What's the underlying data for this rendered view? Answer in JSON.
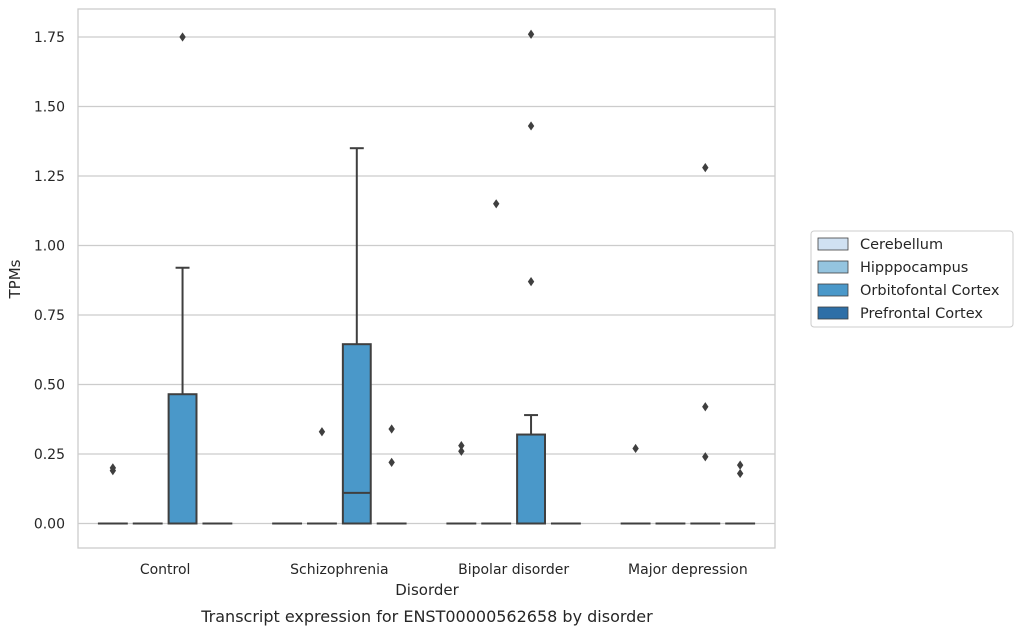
{
  "chart_data": {
    "type": "box",
    "caption": "Transcript expression for ENST00000562658 by disorder",
    "xlabel": "Disorder",
    "ylabel": "TPMs",
    "ylim": [
      -0.085,
      1.85
    ],
    "yticks": [
      0.0,
      0.25,
      0.5,
      0.75,
      1.0,
      1.25,
      1.5,
      1.75
    ],
    "ytick_labels": [
      "0.00",
      "0.25",
      "0.50",
      "0.75",
      "1.00",
      "1.25",
      "1.50",
      "1.75"
    ],
    "grid": "y",
    "categories": [
      "Control",
      "Schizophrenia",
      "Bipolar disorder",
      "Major depression"
    ],
    "legend": {
      "placement": "right"
    },
    "series": [
      {
        "name": "Cerebellum",
        "color": "#d0e1f2",
        "boxes": [
          {
            "q1": 0,
            "median": 0,
            "q3": 0,
            "whisker_low": 0,
            "whisker_high": 0,
            "outliers": [
              0.19,
              0.2
            ]
          },
          {
            "q1": 0,
            "median": 0,
            "q3": 0,
            "whisker_low": 0,
            "whisker_high": 0,
            "outliers": []
          },
          {
            "q1": 0,
            "median": 0,
            "q3": 0,
            "whisker_low": 0,
            "whisker_high": 0,
            "outliers": [
              0.26,
              0.28
            ]
          },
          {
            "q1": 0,
            "median": 0,
            "q3": 0,
            "whisker_low": 0,
            "whisker_high": 0,
            "outliers": [
              0.27
            ]
          }
        ]
      },
      {
        "name": "Hipppocampus",
        "color": "#94c4df",
        "boxes": [
          {
            "q1": 0,
            "median": 0,
            "q3": 0,
            "whisker_low": 0,
            "whisker_high": 0,
            "outliers": []
          },
          {
            "q1": 0,
            "median": 0,
            "q3": 0,
            "whisker_low": 0,
            "whisker_high": 0,
            "outliers": [
              0.33
            ]
          },
          {
            "q1": 0,
            "median": 0,
            "q3": 0,
            "whisker_low": 0,
            "whisker_high": 0,
            "outliers": [
              1.15
            ]
          },
          {
            "q1": 0,
            "median": 0,
            "q3": 0,
            "whisker_low": 0,
            "whisker_high": 0,
            "outliers": []
          }
        ]
      },
      {
        "name": "Orbitofontal Cortex",
        "color": "#4a98c9",
        "boxes": [
          {
            "q1": 0,
            "median": 0,
            "q3": 0.465,
            "whisker_low": 0,
            "whisker_high": 0.92,
            "outliers": [
              1.75
            ]
          },
          {
            "q1": 0,
            "median": 0.11,
            "q3": 0.645,
            "whisker_low": 0,
            "whisker_high": 1.35,
            "outliers": []
          },
          {
            "q1": 0,
            "median": 0,
            "q3": 0.32,
            "whisker_low": 0,
            "whisker_high": 0.39,
            "outliers": [
              0.87,
              1.43,
              1.76
            ]
          },
          {
            "q1": 0,
            "median": 0,
            "q3": 0,
            "whisker_low": 0,
            "whisker_high": 0,
            "outliers": [
              0.24,
              0.42,
              1.28
            ]
          }
        ]
      },
      {
        "name": "Prefrontal Cortex",
        "color": "#2e6fa7",
        "boxes": [
          {
            "q1": 0,
            "median": 0,
            "q3": 0,
            "whisker_low": 0,
            "whisker_high": 0,
            "outliers": []
          },
          {
            "q1": 0,
            "median": 0,
            "q3": 0,
            "whisker_low": 0,
            "whisker_high": 0,
            "outliers": [
              0.22,
              0.34
            ]
          },
          {
            "q1": 0,
            "median": 0,
            "q3": 0,
            "whisker_low": 0,
            "whisker_high": 0,
            "outliers": []
          },
          {
            "q1": 0,
            "median": 0,
            "q3": 0,
            "whisker_low": 0,
            "whisker_high": 0,
            "outliers": [
              0.18,
              0.21
            ]
          }
        ]
      }
    ]
  }
}
